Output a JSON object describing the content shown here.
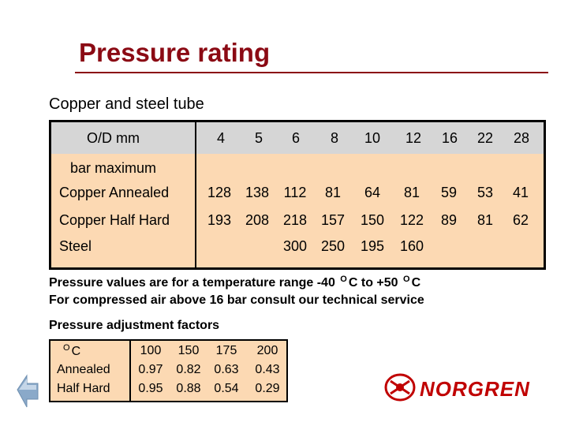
{
  "title": "Pressure rating",
  "subtitle": "Copper and steel tube",
  "main_table": {
    "od_label": "O/D mm",
    "sizes": [
      "4",
      "5",
      "6",
      "8",
      "10",
      "12",
      "16",
      "22",
      "28"
    ],
    "section_label": "bar maximum",
    "rows": [
      {
        "label": "Copper Annealed",
        "values": [
          "128",
          "138",
          "112",
          "81",
          "64",
          "81",
          "59",
          "53",
          "41"
        ]
      },
      {
        "label": "Copper Half Hard",
        "values": [
          "193",
          "208",
          "218",
          "157",
          "150",
          "122",
          "89",
          "81",
          "62"
        ]
      },
      {
        "label": "Steel",
        "values": [
          "",
          "",
          "300",
          "250",
          "195",
          "160",
          "",
          "",
          ""
        ]
      }
    ]
  },
  "notes": {
    "line1_prefix": "Pressure values are for a temperature range -40",
    "line1_unit": "O",
    "line1_mid": "C to +50",
    "line1_unit2": "O",
    "line1_suffix": "C",
    "line2": "For compressed air above 16 bar consult our technical service"
  },
  "adjustment": {
    "heading": "Pressure adjustment factors",
    "unit_sup": "O",
    "unit": "C",
    "temps": [
      "100",
      "150",
      "175",
      "200"
    ],
    "rows": [
      {
        "label": "Annealed",
        "values": [
          "0.97",
          "0.82",
          "0.63",
          "0.43"
        ]
      },
      {
        "label": "Half Hard",
        "values": [
          "0.95",
          "0.88",
          "0.54",
          "0.29"
        ]
      }
    ]
  },
  "logo": {
    "text": "NORGREN"
  },
  "colors": {
    "title": "#8b0a14",
    "table_bg": "#fcd9b3",
    "header_bg": "#d6d6d6",
    "logo": "#c00000"
  },
  "icons": {
    "back": "back-arrow-icon",
    "logo": "norgren-logo-icon"
  }
}
